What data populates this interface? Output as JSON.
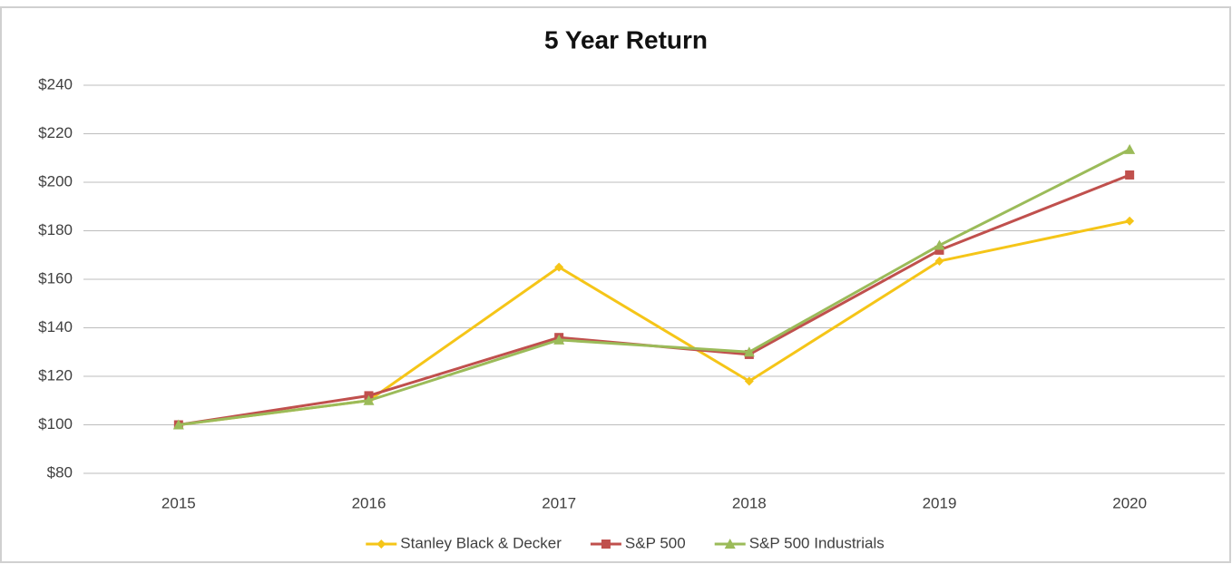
{
  "chart_data": {
    "type": "line",
    "title": "5 Year Return",
    "categories": [
      "2015",
      "2016",
      "2017",
      "2018",
      "2019",
      "2020"
    ],
    "series": [
      {
        "name": "Stanley Black & Decker",
        "color": "#f5c518",
        "marker": "diamond",
        "values": [
          100,
          110,
          165,
          118,
          167.5,
          184
        ]
      },
      {
        "name": "S&P 500",
        "color": "#c0504d",
        "marker": "square",
        "values": [
          100,
          112,
          136,
          129,
          172,
          203
        ]
      },
      {
        "name": "S&P 500 Industrials",
        "color": "#9bbb59",
        "marker": "triangle",
        "values": [
          100,
          110,
          135,
          130,
          174,
          213.5
        ]
      }
    ],
    "ylim": [
      80,
      240
    ],
    "yticks": [
      {
        "value": 80,
        "label": "$80"
      },
      {
        "value": 100,
        "label": "$100"
      },
      {
        "value": 120,
        "label": "$120"
      },
      {
        "value": 140,
        "label": "$140"
      },
      {
        "value": 160,
        "label": "$160"
      },
      {
        "value": 180,
        "label": "$180"
      },
      {
        "value": 200,
        "label": "$200"
      },
      {
        "value": 220,
        "label": "$220"
      },
      {
        "value": 240,
        "label": "$240"
      }
    ],
    "grid": true,
    "legend": "bottom"
  }
}
